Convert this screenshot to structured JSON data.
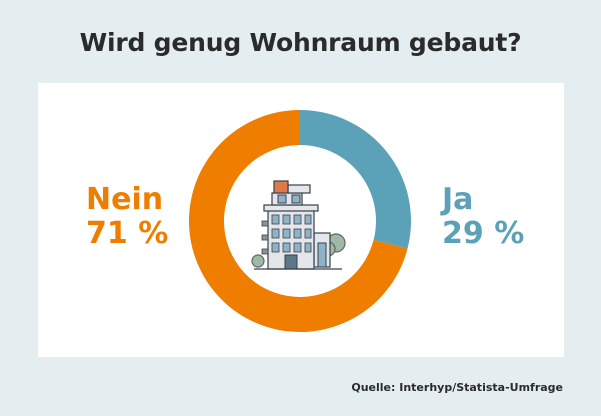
{
  "title": "Wird genug Wohnraum gebaut?",
  "source": "Quelle: Interhyp/Statista-Umfrage",
  "colors": {
    "nein": "#ee7d00",
    "ja": "#5ba2b8",
    "background": "#e4eef1"
  },
  "icon": "apartment-building-icon",
  "chart_data": {
    "type": "pie",
    "title": "Wird genug Wohnraum gebaut?",
    "categories": [
      "Nein",
      "Ja"
    ],
    "values": [
      71,
      29
    ],
    "value_labels": [
      "71 %",
      "29 %"
    ],
    "colors": [
      "#ee7d00",
      "#5ba2b8"
    ]
  }
}
